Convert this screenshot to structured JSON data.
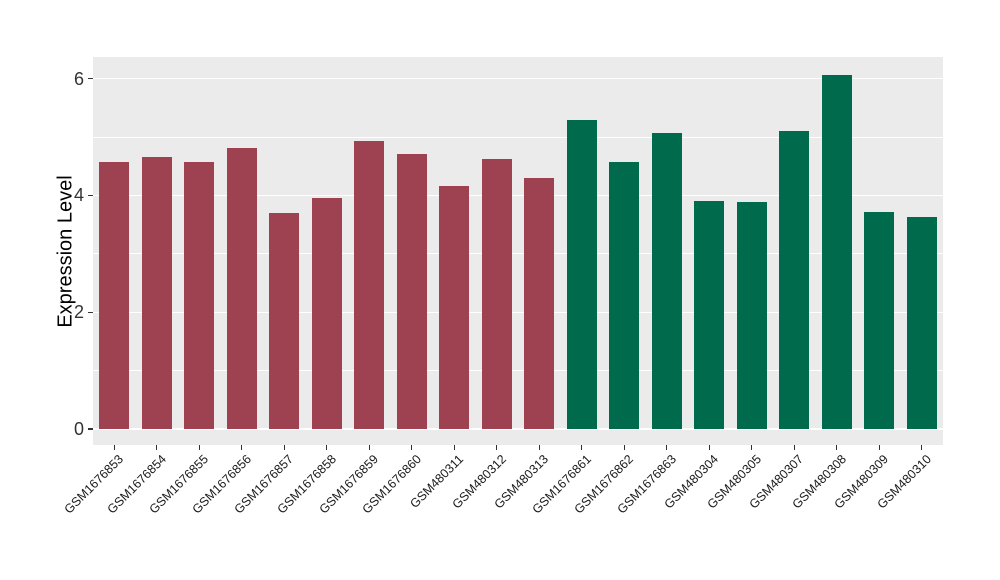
{
  "chart_data": {
    "type": "bar",
    "title": "",
    "xlabel": "",
    "ylabel": "Expression Level",
    "categories": [
      "GSM1676853",
      "GSM1676854",
      "GSM1676855",
      "GSM1676856",
      "GSM1676857",
      "GSM1676858",
      "GSM1676859",
      "GSM1676860",
      "GSM480311",
      "GSM480312",
      "GSM480313",
      "GSM1676861",
      "GSM1676862",
      "GSM1676863",
      "GSM480304",
      "GSM480305",
      "GSM480307",
      "GSM480308",
      "GSM480309",
      "GSM480310"
    ],
    "values": [
      4.58,
      4.66,
      4.57,
      4.81,
      3.7,
      3.96,
      4.94,
      4.71,
      4.16,
      4.62,
      4.29,
      5.29,
      4.57,
      5.06,
      3.91,
      3.89,
      5.11,
      6.07,
      3.72,
      3.63
    ],
    "groups": [
      "group1",
      "group1",
      "group1",
      "group1",
      "group1",
      "group1",
      "group1",
      "group1",
      "group1",
      "group1",
      "group1",
      "group2",
      "group2",
      "group2",
      "group2",
      "group2",
      "group2",
      "group2",
      "group2",
      "group2"
    ],
    "group_colors": {
      "group1": "#9E4252",
      "group2": "#006A4D"
    },
    "yticks_major": [
      0,
      2,
      4,
      6
    ],
    "yticks_minor": [
      1,
      3,
      5
    ],
    "ytick_labels": [
      "0",
      "2",
      "4",
      "6"
    ],
    "ylim": [
      -0.3,
      6.37
    ],
    "grid": "on",
    "legend": "none",
    "bar_width_ratio": 0.7,
    "colors": {
      "panel_background": "#EBEBEB",
      "gridline": "#FFFFFF",
      "tick_mark": "#333333",
      "axis_text": "#333333",
      "x_axis_text": "#1A1A1A",
      "figure_background": "#FFFFFF"
    }
  }
}
